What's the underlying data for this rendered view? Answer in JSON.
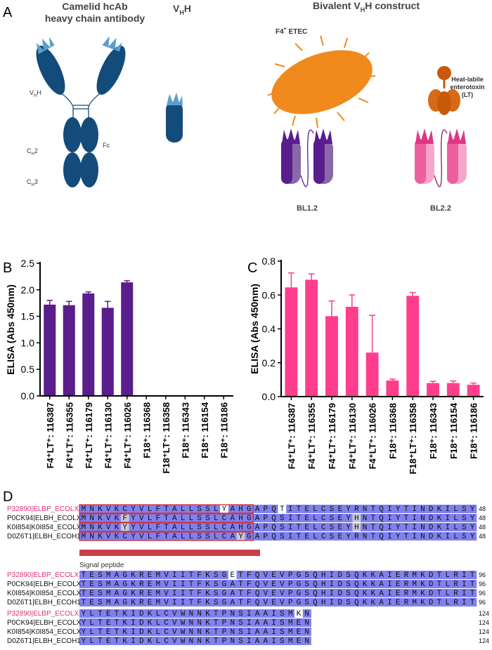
{
  "panel_labels": [
    "A",
    "B",
    "C",
    "D"
  ],
  "diagram": {
    "title_hcab": [
      "Camelid hcAb",
      "heavy chain antibody"
    ],
    "title_vhh": [
      "V",
      "H",
      "H"
    ],
    "title_bivalent": [
      "Bivalent V",
      "H",
      "H construct"
    ],
    "label_vhh": [
      "V",
      "H",
      "H"
    ],
    "label_ch2": [
      "C",
      "H",
      "2"
    ],
    "label_ch3": [
      "C",
      "H",
      "3"
    ],
    "label_fc": "Fc",
    "label_etec": [
      "F4",
      "+",
      " ETEC"
    ],
    "label_lt": [
      "Heat-labile",
      "enterotoxin",
      "(LT)"
    ],
    "label_bl12": "BL1.2",
    "label_bl22": "BL2.2"
  },
  "chart_data": [
    {
      "type": "bar",
      "y_label": "ELISA (Abs 450nm)",
      "categories": [
        "F4⁺LT⁺: 116387",
        "F4⁺LT⁺: 116355",
        "F4⁺LT⁺: 116179",
        "F4⁺LT⁺: 116130",
        "F4⁺LT⁺: 116026",
        "F18⁺: 116368",
        "F18⁺LT⁺: 116358",
        "F18⁺: 116343",
        "F18⁺: 116154",
        "F18⁺: 116186"
      ],
      "values": [
        1.72,
        1.71,
        1.93,
        1.66,
        2.14,
        0,
        0,
        0,
        0,
        0
      ],
      "errors": [
        0.08,
        0.07,
        0.03,
        0.12,
        0.03,
        0,
        0,
        0,
        0,
        0
      ],
      "color": "#5a1d8c",
      "ylim": [
        0,
        2.5
      ],
      "yticks": [
        {
          "value": 0,
          "label": "0.0"
        },
        0.5,
        {
          "value": 1,
          "label": "1.0"
        },
        1.5,
        {
          "value": 2,
          "label": "2.0"
        },
        2.5
      ]
    },
    {
      "type": "bar",
      "y_label": "ELISA (Abs 450nm)",
      "categories": [
        "F4⁺LT⁺: 116387",
        "F4⁺LT⁺: 116355",
        "F4⁺LT⁺: 116179",
        "F4⁺LT⁺: 116130",
        "F4⁺LT⁺: 116026",
        "F18⁺: 116368",
        "F18⁺LT⁺: 116358",
        "F18⁺: 116343",
        "F18⁺: 116154",
        "F18⁺: 116186"
      ],
      "values": [
        0.645,
        0.69,
        0.475,
        0.53,
        0.26,
        0.095,
        0.595,
        0.08,
        0.08,
        0.07
      ],
      "errors": [
        0.085,
        0.035,
        0.09,
        0.07,
        0.22,
        0.008,
        0.02,
        0.01,
        0.012,
        0.01
      ],
      "color": "#ff3d8c",
      "ylim": [
        0,
        0.8
      ],
      "yticks": [
        {
          "value": 0,
          "label": "0.0"
        },
        0.2,
        0.4,
        0.6,
        0.8
      ]
    }
  ],
  "alignment": {
    "blocks": [
      {
        "names": [
          "P32890|ELBP_ECOLX",
          "P0CK94|ELBH_ECOLX",
          "K0I854|K0I854_ECOLX",
          "D0Z6T1|ELBH_ECOH1"
        ],
        "sequences": [
          "MNKVKCYVLFTALLSSLYAHGAPQTITELCSEYRNTQIYTINDKILSY",
          "MNKVKFYVLFTALLSSLCAHGAPQSITELCSEYHNTQIYTINDKILSY",
          "MNKVKYYVLFTALLSSLCAHGAPQSITELCSEYHNTQIYTINDKILSY",
          "MNKVKCYVLFTALLSSLCAYGAPQSITELCSEYRNTQIYTINDKILSY"
        ],
        "ends": [
          48,
          48,
          48,
          48
        ]
      },
      {
        "names": [
          "P32890|ELBP_ECOLX",
          "P0CK94|ELBH_ECOLX",
          "K0I854|K0I854_ECOLX",
          "D0Z6T1|ELBH_ECOH1"
        ],
        "sequences": [
          "TESMAGKREMVIITFKSGETFQVEVPGSQHIDSQKKAIERMKDTLRIT",
          "TESMAGKREMVIITFKSGATFQVEVPGSQHIDSQKKAIERMKDTLRIT",
          "TESMAGKREMVIITFKSGATFQVEVPGSQHIDSQKKAIERMKDTLRIT",
          "TESMAGKREMVIITFKSGATFQVEVPGSQHIDSQKKAIERMKDTLRIT"
        ],
        "ends": [
          96,
          96,
          96,
          96
        ]
      },
      {
        "names": [
          "P32890|ELBP_ECOLX",
          "P0CK94|ELBH_ECOLX",
          "K0I854|K0I854_ECOLX",
          "D0Z6T1|ELBH_ECOH1"
        ],
        "sequences": [
          "YLTETKIDKLCVWNNKTPNSIAAISMKN",
          "YLTETKIDKLCVWNNKTPNSIAAISMEN",
          "YLTETKIDKLCVWNNKTPNSIAAISMEN",
          "YLTETKIDKLCVWNNKTPNSIAAISMEN"
        ],
        "ends": [
          124,
          124,
          124,
          124
        ]
      }
    ],
    "signal_peptide": "Signal peptide"
  }
}
